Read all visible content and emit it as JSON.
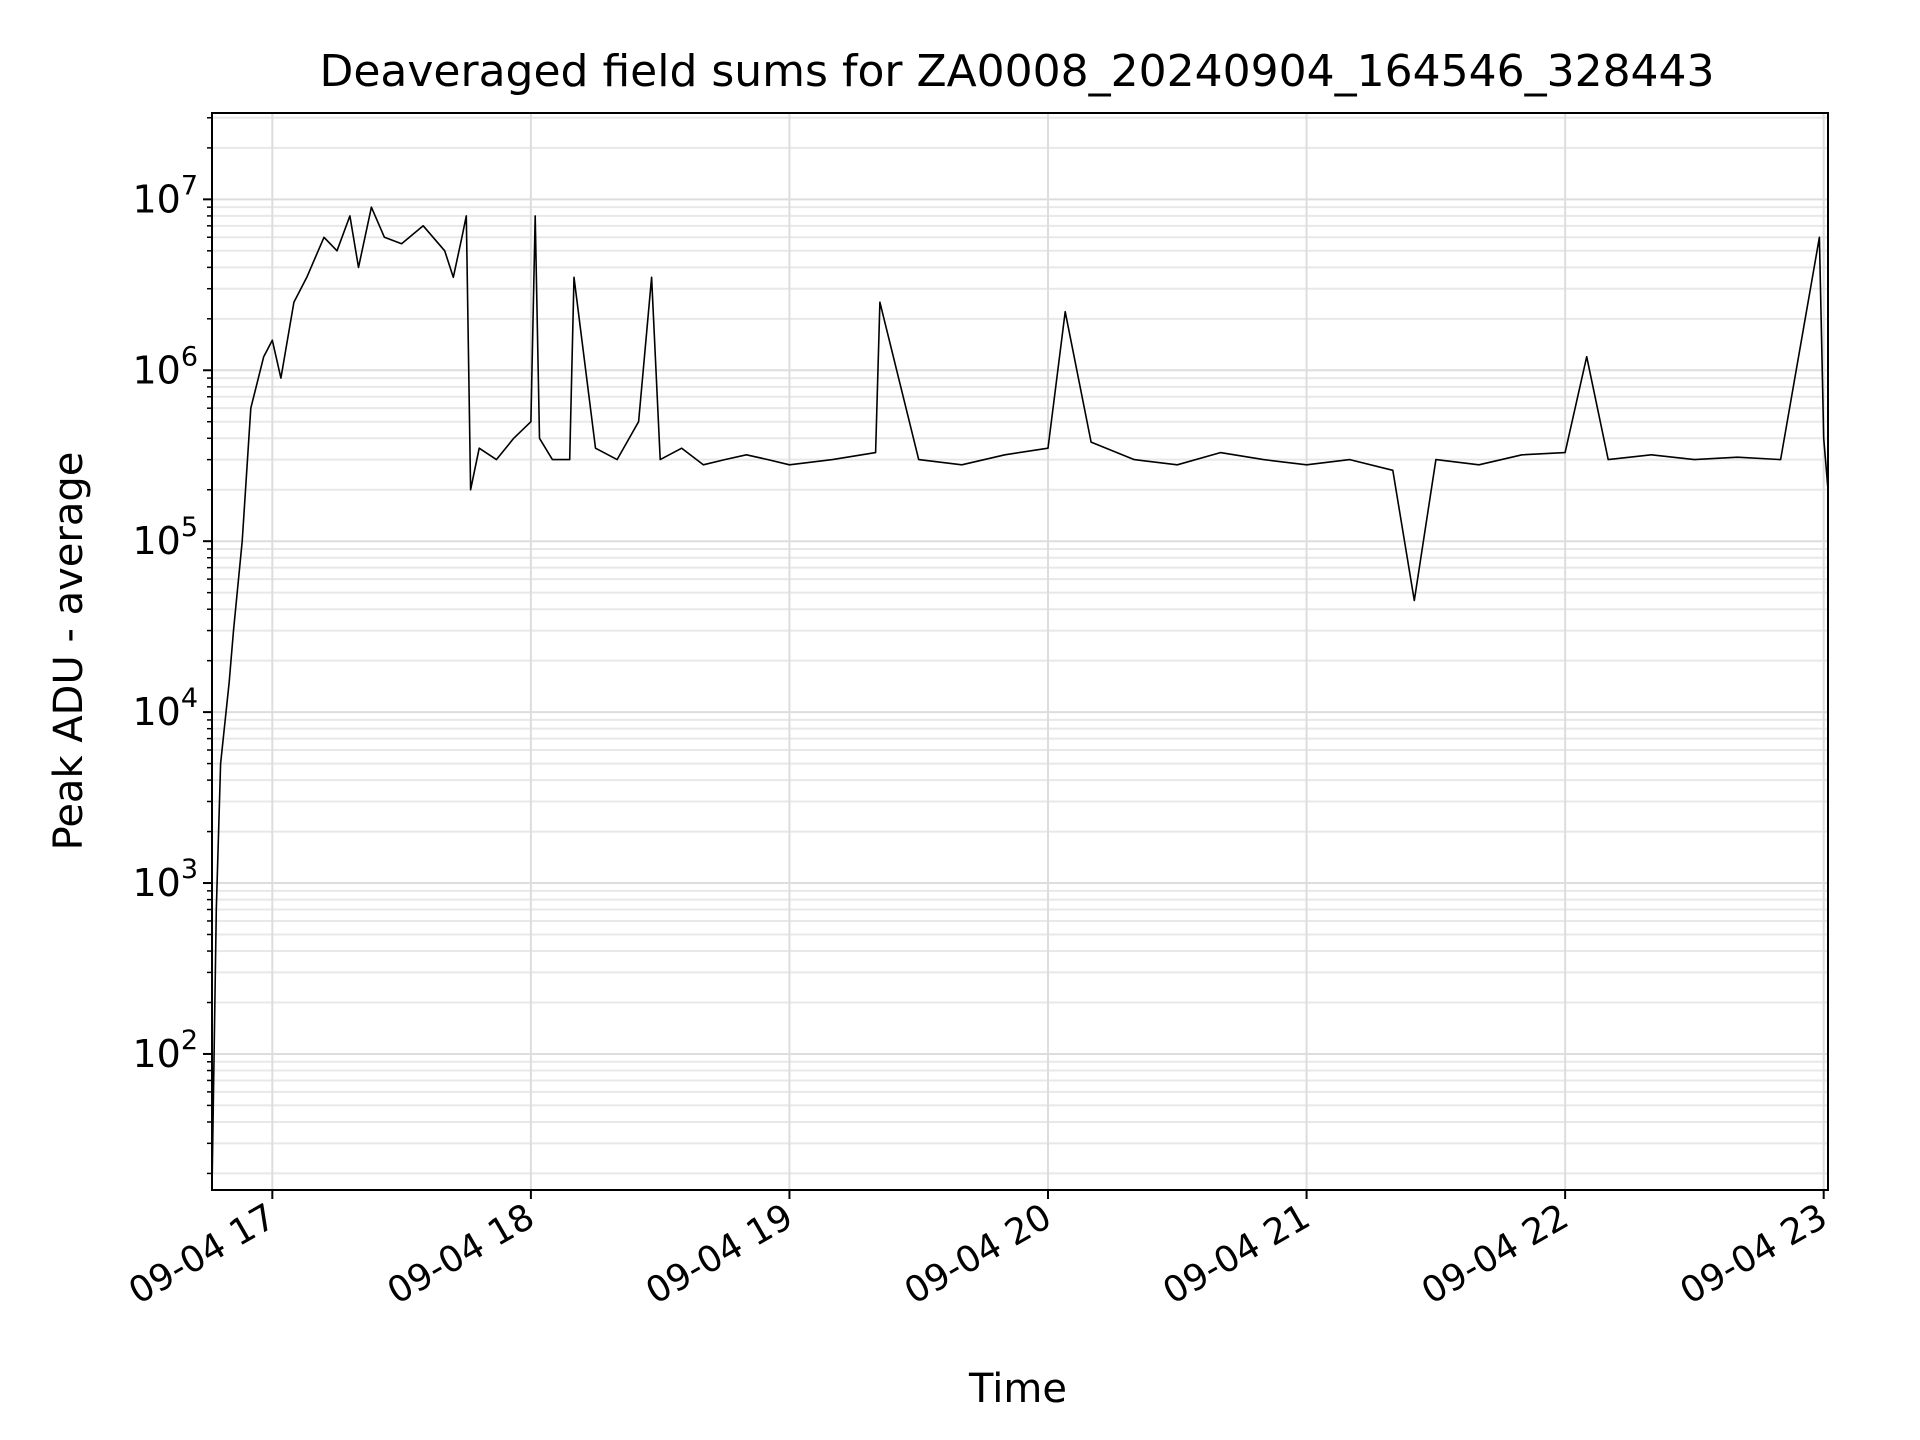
{
  "chart_data": {
    "type": "line",
    "title": "Deaveraged field sums for ZA0008_20240904_164546_328443",
    "xlabel": "Time",
    "ylabel": "Peak ADU - average",
    "yscale": "log",
    "ylim": [
      16,
      32000000
    ],
    "xlim": [
      "2024-09-04 16:46",
      "2024-09-04 23:01"
    ],
    "x_ticks": [
      "09-04 17",
      "09-04 18",
      "09-04 19",
      "09-04 20",
      "09-04 21",
      "09-04 22",
      "09-04 23"
    ],
    "x_tick_times": [
      "2024-09-04 17:00",
      "2024-09-04 18:00",
      "2024-09-04 19:00",
      "2024-09-04 20:00",
      "2024-09-04 21:00",
      "2024-09-04 22:00",
      "2024-09-04 23:00"
    ],
    "y_ticks": [
      {
        "base": "10",
        "exp": "2",
        "value": 100
      },
      {
        "base": "10",
        "exp": "3",
        "value": 1000
      },
      {
        "base": "10",
        "exp": "4",
        "value": 10000
      },
      {
        "base": "10",
        "exp": "5",
        "value": 100000
      },
      {
        "base": "10",
        "exp": "6",
        "value": 1000000
      },
      {
        "base": "10",
        "exp": "7",
        "value": 10000000
      }
    ],
    "grid": "major and minor",
    "series": [
      {
        "color": "#000000",
        "x": [
          "2024-09-04 16:46",
          "2024-09-04 16:47",
          "2024-09-04 16:48",
          "2024-09-04 16:50",
          "2024-09-04 16:51",
          "2024-09-04 16:53",
          "2024-09-04 16:55",
          "2024-09-04 16:58",
          "2024-09-04 17:00",
          "2024-09-04 17:02",
          "2024-09-04 17:05",
          "2024-09-04 17:08",
          "2024-09-04 17:12",
          "2024-09-04 17:15",
          "2024-09-04 17:18",
          "2024-09-04 17:20",
          "2024-09-04 17:23",
          "2024-09-04 17:26",
          "2024-09-04 17:30",
          "2024-09-04 17:35",
          "2024-09-04 17:40",
          "2024-09-04 17:42",
          "2024-09-04 17:44",
          "2024-09-04 17:45",
          "2024-09-04 17:46",
          "2024-09-04 17:48",
          "2024-09-04 17:52",
          "2024-09-04 17:56",
          "2024-09-04 18:00",
          "2024-09-04 18:01",
          "2024-09-04 18:02",
          "2024-09-04 18:05",
          "2024-09-04 18:09",
          "2024-09-04 18:10",
          "2024-09-04 18:15",
          "2024-09-04 18:20",
          "2024-09-04 18:25",
          "2024-09-04 18:28",
          "2024-09-04 18:30",
          "2024-09-04 18:35",
          "2024-09-04 18:40",
          "2024-09-04 18:45",
          "2024-09-04 18:50",
          "2024-09-04 18:55",
          "2024-09-04 19:00",
          "2024-09-04 19:10",
          "2024-09-04 19:20",
          "2024-09-04 19:21",
          "2024-09-04 19:30",
          "2024-09-04 19:40",
          "2024-09-04 19:50",
          "2024-09-04 20:00",
          "2024-09-04 20:04",
          "2024-09-04 20:10",
          "2024-09-04 20:20",
          "2024-09-04 20:30",
          "2024-09-04 20:40",
          "2024-09-04 20:50",
          "2024-09-04 21:00",
          "2024-09-04 21:10",
          "2024-09-04 21:20",
          "2024-09-04 21:25",
          "2024-09-04 21:30",
          "2024-09-04 21:40",
          "2024-09-04 21:50",
          "2024-09-04 22:00",
          "2024-09-04 22:05",
          "2024-09-04 22:10",
          "2024-09-04 22:20",
          "2024-09-04 22:30",
          "2024-09-04 22:40",
          "2024-09-04 22:50",
          "2024-09-04 22:59",
          "2024-09-04 23:00",
          "2024-09-04 23:01"
        ],
        "y": [
          16,
          700,
          5000,
          15000,
          30000,
          100000,
          600000,
          1200000,
          1500000,
          900000,
          2500000,
          3500000,
          6000000,
          5000000,
          8000000,
          4000000,
          9000000,
          6000000,
          5500000,
          7000000,
          5000000,
          3500000,
          6000000,
          8000000,
          200000,
          350000,
          300000,
          400000,
          500000,
          8000000,
          400000,
          300000,
          300000,
          3500000,
          350000,
          300000,
          500000,
          3500000,
          300000,
          350000,
          280000,
          300000,
          320000,
          300000,
          280000,
          300000,
          330000,
          2500000,
          300000,
          280000,
          320000,
          350000,
          2200000,
          380000,
          300000,
          280000,
          330000,
          300000,
          280000,
          300000,
          260000,
          45000,
          300000,
          280000,
          320000,
          330000,
          1200000,
          300000,
          320000,
          300000,
          310000,
          300000,
          6000000,
          400000,
          200000
        ]
      }
    ]
  }
}
